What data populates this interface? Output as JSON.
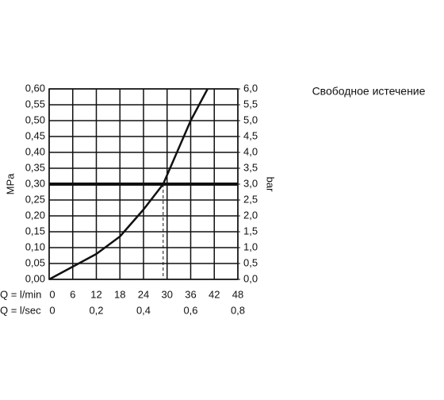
{
  "chart_data": {
    "type": "line",
    "title": "Свободное истечение",
    "ylabel": "MPa",
    "y2label": "bar",
    "xlabel": "Q = l/min",
    "x2label": "Q = l/sec",
    "xlim": [
      0,
      48
    ],
    "xticks": [
      0,
      6,
      12,
      18,
      24,
      30,
      36,
      42,
      48
    ],
    "x2lim": [
      0,
      0.8
    ],
    "x2ticks": [
      {
        "value": 0,
        "label": "0"
      },
      {
        "value": 0.2,
        "label": "0,2"
      },
      {
        "value": 0.4,
        "label": "0,4"
      },
      {
        "value": 0.6,
        "label": "0,6"
      },
      {
        "value": 0.8,
        "label": "0,8"
      }
    ],
    "ylim": [
      0,
      0.6
    ],
    "yticks": [
      {
        "value": 0,
        "label": "0,00"
      },
      {
        "value": 0.05,
        "label": "0,05"
      },
      {
        "value": 0.1,
        "label": "0,10"
      },
      {
        "value": 0.15,
        "label": "0,15"
      },
      {
        "value": 0.2,
        "label": "0,20"
      },
      {
        "value": 0.25,
        "label": "0,25"
      },
      {
        "value": 0.3,
        "label": "0,30"
      },
      {
        "value": 0.35,
        "label": "0,35"
      },
      {
        "value": 0.4,
        "label": "0,40"
      },
      {
        "value": 0.45,
        "label": "0,45"
      },
      {
        "value": 0.5,
        "label": "0,50"
      },
      {
        "value": 0.55,
        "label": "0,55"
      },
      {
        "value": 0.6,
        "label": "0,60"
      }
    ],
    "y2lim": [
      0,
      6
    ],
    "y2ticks": [
      {
        "value": 0,
        "label": "0,0"
      },
      {
        "value": 0.5,
        "label": "0,5"
      },
      {
        "value": 1,
        "label": "1,0"
      },
      {
        "value": 1.5,
        "label": "1,5"
      },
      {
        "value": 2,
        "label": "2,0"
      },
      {
        "value": 2.5,
        "label": "2,5"
      },
      {
        "value": 3,
        "label": "3,0"
      },
      {
        "value": 3.5,
        "label": "3,5"
      },
      {
        "value": 4,
        "label": "4,0"
      },
      {
        "value": 4.5,
        "label": "4,5"
      },
      {
        "value": 5,
        "label": "5,0"
      },
      {
        "value": 5.5,
        "label": "5,5"
      },
      {
        "value": 6,
        "label": "6,0"
      }
    ],
    "grid": true,
    "x": [
      0,
      6,
      12,
      18,
      24,
      29,
      36,
      40.3
    ],
    "series": [
      {
        "color": "#111111",
        "values": [
          0,
          0.04,
          0.08,
          0.135,
          0.22,
          0.3,
          0.5,
          0.6
        ]
      }
    ],
    "reference_y": 0.3,
    "reference_x": 29
  }
}
